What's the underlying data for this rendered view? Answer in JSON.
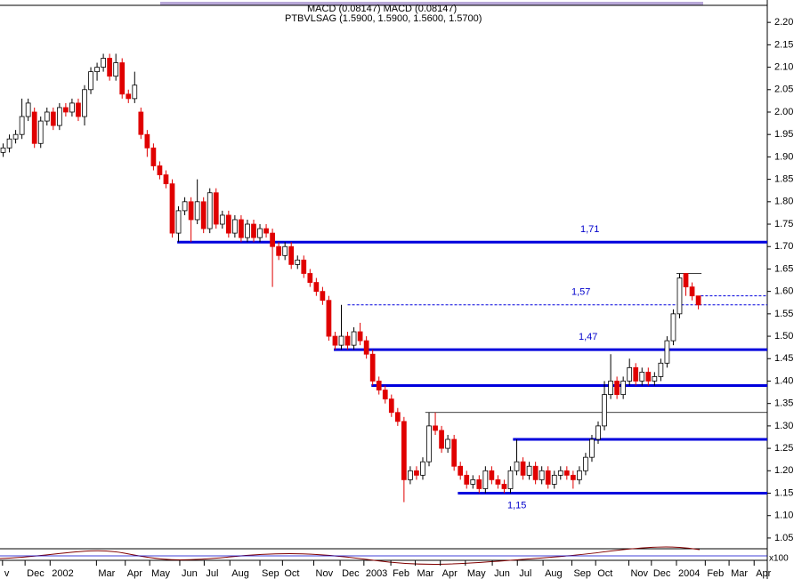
{
  "chart_data": {
    "type": "candlestick",
    "header": "MACD (0.08147) MACD (0.08147)",
    "subtitle": "PTBVLSAG (1.5900, 1.5900, 1.5600, 1.5700)",
    "indicator_label": "x100",
    "up_color": "#ffffff",
    "down_color": "#e00000",
    "level_color": "#0000dd",
    "xlim": [
      -0.5,
      122
    ],
    "ylim": [
      1.03,
      2.24
    ],
    "yticks": [
      1.05,
      {
        "value": 1.1,
        "label": "1.10"
      },
      1.15,
      {
        "value": 1.2,
        "label": "1.20"
      },
      1.25,
      {
        "value": 1.3,
        "label": "1.30"
      },
      1.35,
      {
        "value": 1.4,
        "label": "1.40"
      },
      1.45,
      {
        "value": 1.5,
        "label": "1.50"
      },
      1.55,
      {
        "value": 1.6,
        "label": "1.60"
      },
      1.65,
      {
        "value": 1.7,
        "label": "1.70"
      },
      1.75,
      {
        "value": 1.8,
        "label": "1.80"
      },
      1.85,
      {
        "value": 1.9,
        "label": "1.90"
      },
      1.95,
      {
        "value": 2.0,
        "label": "2.00"
      },
      2.05,
      {
        "value": 2.1,
        "label": "2.10"
      },
      2.15,
      {
        "value": 2.2,
        "label": "2.20"
      }
    ],
    "xticks": [
      {
        "value": -0.1,
        "label": "v"
      },
      {
        "value": 3.5,
        "label": "Dec"
      },
      {
        "value": 7.5,
        "label": "2002"
      },
      {
        "value": 14.9,
        "label": "Mar"
      },
      {
        "value": 19.5,
        "label": "Apr"
      },
      {
        "value": 23.4,
        "label": "May"
      },
      {
        "value": 28.2,
        "label": "Jun"
      },
      {
        "value": 32.1,
        "label": "Jul"
      },
      {
        "value": 36.2,
        "label": "Aug"
      },
      {
        "value": 41,
        "label": "Sep"
      },
      {
        "value": 44.6,
        "label": "Oct"
      },
      {
        "value": 49.6,
        "label": "Nov"
      },
      {
        "value": 53.8,
        "label": "Dec"
      },
      {
        "value": 57.6,
        "label": "2003"
      },
      {
        "value": 61.9,
        "label": "Feb"
      },
      {
        "value": 65.8,
        "label": "Mar"
      },
      {
        "value": 69.8,
        "label": "Apr"
      },
      {
        "value": 73.8,
        "label": "May"
      },
      {
        "value": 78.1,
        "label": "Jun"
      },
      {
        "value": 82.1,
        "label": "Jul"
      },
      {
        "value": 86.2,
        "label": "Aug"
      },
      {
        "value": 90.8,
        "label": "Sep"
      },
      {
        "value": 94.6,
        "label": "Oct"
      },
      {
        "value": 99.9,
        "label": "Nov"
      },
      {
        "value": 103.5,
        "label": "Dec"
      },
      {
        "value": 107.5,
        "label": "2004"
      },
      {
        "value": 112.1,
        "label": "Feb"
      },
      {
        "value": 115.9,
        "label": "Mar"
      },
      {
        "value": 119.9,
        "label": "Apr"
      }
    ],
    "ohlc": [
      [
        1.91,
        1.93,
        1.9,
        1.92
      ],
      [
        1.92,
        1.95,
        1.91,
        1.94
      ],
      [
        1.94,
        1.96,
        1.93,
        1.95
      ],
      [
        1.95,
        2.03,
        1.94,
        1.99
      ],
      [
        1.99,
        2.03,
        1.98,
        2.02
      ],
      [
        2.0,
        2.01,
        1.92,
        1.93
      ],
      [
        1.93,
        1.99,
        1.92,
        1.98
      ],
      [
        1.98,
        2.01,
        1.97,
        2.0
      ],
      [
        2.0,
        2.01,
        1.96,
        1.97
      ],
      [
        1.97,
        2.02,
        1.96,
        2.01
      ],
      [
        2.01,
        2.02,
        1.99,
        2.0
      ],
      [
        2.0,
        2.03,
        1.99,
        2.02
      ],
      [
        2.02,
        2.03,
        1.98,
        1.99
      ],
      [
        1.99,
        2.06,
        1.97,
        2.05
      ],
      [
        2.05,
        2.1,
        2.04,
        2.09
      ],
      [
        2.09,
        2.11,
        2.07,
        2.1
      ],
      [
        2.1,
        2.13,
        2.09,
        2.12
      ],
      [
        2.12,
        2.13,
        2.07,
        2.08
      ],
      [
        2.08,
        2.13,
        2.07,
        2.11
      ],
      [
        2.11,
        2.12,
        2.03,
        2.04
      ],
      [
        2.04,
        2.05,
        2.02,
        2.03
      ],
      [
        2.03,
        2.09,
        2.02,
        2.06
      ],
      [
        2.0,
        2.01,
        1.94,
        1.95
      ],
      [
        1.95,
        1.96,
        1.9,
        1.92
      ],
      [
        1.92,
        1.93,
        1.87,
        1.88
      ],
      [
        1.88,
        1.89,
        1.85,
        1.86
      ],
      [
        1.86,
        1.87,
        1.83,
        1.84
      ],
      [
        1.84,
        1.85,
        1.72,
        1.73
      ],
      [
        1.73,
        1.79,
        1.71,
        1.78
      ],
      [
        1.78,
        1.81,
        1.77,
        1.8
      ],
      [
        1.8,
        1.81,
        1.71,
        1.76
      ],
      [
        1.76,
        1.85,
        1.75,
        1.8
      ],
      [
        1.8,
        1.81,
        1.73,
        1.74
      ],
      [
        1.74,
        1.83,
        1.73,
        1.82
      ],
      [
        1.82,
        1.83,
        1.74,
        1.75
      ],
      [
        1.75,
        1.78,
        1.74,
        1.77
      ],
      [
        1.77,
        1.78,
        1.72,
        1.73
      ],
      [
        1.73,
        1.77,
        1.72,
        1.76
      ],
      [
        1.76,
        1.77,
        1.71,
        1.72
      ],
      [
        1.72,
        1.76,
        1.71,
        1.75
      ],
      [
        1.75,
        1.76,
        1.71,
        1.72
      ],
      [
        1.72,
        1.75,
        1.71,
        1.74
      ],
      [
        1.74,
        1.75,
        1.72,
        1.73
      ],
      [
        1.73,
        1.74,
        1.61,
        1.7
      ],
      [
        1.7,
        1.71,
        1.67,
        1.68
      ],
      [
        1.68,
        1.71,
        1.67,
        1.7
      ],
      [
        1.7,
        1.71,
        1.65,
        1.66
      ],
      [
        1.66,
        1.68,
        1.65,
        1.67
      ],
      [
        1.67,
        1.68,
        1.63,
        1.64
      ],
      [
        1.64,
        1.65,
        1.61,
        1.62
      ],
      [
        1.62,
        1.63,
        1.59,
        1.6
      ],
      [
        1.6,
        1.61,
        1.57,
        1.58
      ],
      [
        1.58,
        1.59,
        1.49,
        1.5
      ],
      [
        1.5,
        1.51,
        1.47,
        1.48
      ],
      [
        1.48,
        1.57,
        1.47,
        1.5
      ],
      [
        1.5,
        1.51,
        1.47,
        1.48
      ],
      [
        1.48,
        1.52,
        1.47,
        1.51
      ],
      [
        1.51,
        1.53,
        1.48,
        1.49
      ],
      [
        1.49,
        1.5,
        1.45,
        1.46
      ],
      [
        1.46,
        1.47,
        1.39,
        1.4
      ],
      [
        1.4,
        1.41,
        1.37,
        1.38
      ],
      [
        1.38,
        1.39,
        1.35,
        1.36
      ],
      [
        1.36,
        1.37,
        1.32,
        1.33
      ],
      [
        1.33,
        1.34,
        1.3,
        1.31
      ],
      [
        1.31,
        1.32,
        1.13,
        1.18
      ],
      [
        1.18,
        1.21,
        1.17,
        1.2
      ],
      [
        1.2,
        1.21,
        1.18,
        1.19
      ],
      [
        1.19,
        1.23,
        1.18,
        1.22
      ],
      [
        1.22,
        1.33,
        1.21,
        1.3
      ],
      [
        1.3,
        1.33,
        1.28,
        1.29
      ],
      [
        1.29,
        1.3,
        1.24,
        1.25
      ],
      [
        1.25,
        1.28,
        1.24,
        1.27
      ],
      [
        1.27,
        1.28,
        1.2,
        1.21
      ],
      [
        1.21,
        1.22,
        1.18,
        1.19
      ],
      [
        1.19,
        1.2,
        1.16,
        1.17
      ],
      [
        1.17,
        1.19,
        1.16,
        1.18
      ],
      [
        1.18,
        1.19,
        1.15,
        1.16
      ],
      [
        1.16,
        1.21,
        1.15,
        1.2
      ],
      [
        1.2,
        1.21,
        1.17,
        1.18
      ],
      [
        1.18,
        1.19,
        1.16,
        1.17
      ],
      [
        1.17,
        1.18,
        1.15,
        1.16
      ],
      [
        1.16,
        1.21,
        1.15,
        1.2
      ],
      [
        1.2,
        1.27,
        1.19,
        1.22
      ],
      [
        1.22,
        1.23,
        1.18,
        1.19
      ],
      [
        1.19,
        1.22,
        1.18,
        1.21
      ],
      [
        1.21,
        1.22,
        1.17,
        1.18
      ],
      [
        1.18,
        1.21,
        1.17,
        1.2
      ],
      [
        1.2,
        1.21,
        1.16,
        1.17
      ],
      [
        1.17,
        1.2,
        1.16,
        1.19
      ],
      [
        1.19,
        1.21,
        1.18,
        1.2
      ],
      [
        1.2,
        1.21,
        1.18,
        1.19
      ],
      [
        1.19,
        1.2,
        1.16,
        1.18
      ],
      [
        1.18,
        1.21,
        1.17,
        1.2
      ],
      [
        1.2,
        1.24,
        1.19,
        1.23
      ],
      [
        1.23,
        1.28,
        1.22,
        1.27
      ],
      [
        1.27,
        1.31,
        1.26,
        1.3
      ],
      [
        1.3,
        1.4,
        1.29,
        1.37
      ],
      [
        1.37,
        1.46,
        1.36,
        1.4
      ],
      [
        1.4,
        1.41,
        1.36,
        1.37
      ],
      [
        1.37,
        1.41,
        1.36,
        1.4
      ],
      [
        1.4,
        1.45,
        1.39,
        1.43
      ],
      [
        1.43,
        1.44,
        1.39,
        1.4
      ],
      [
        1.4,
        1.43,
        1.39,
        1.42
      ],
      [
        1.42,
        1.43,
        1.39,
        1.4
      ],
      [
        1.4,
        1.42,
        1.39,
        1.41
      ],
      [
        1.41,
        1.45,
        1.4,
        1.44
      ],
      [
        1.44,
        1.5,
        1.43,
        1.49
      ],
      [
        1.49,
        1.56,
        1.48,
        1.55
      ],
      [
        1.55,
        1.64,
        1.54,
        1.63
      ],
      [
        1.64,
        1.64,
        1.59,
        1.61
      ],
      [
        1.61,
        1.62,
        1.58,
        1.59
      ],
      [
        1.59,
        1.59,
        1.56,
        1.57
      ]
    ],
    "levels": [
      {
        "value": 1.71,
        "label": "1,71",
        "from": 27.8,
        "style": "solid"
      },
      {
        "value": 1.57,
        "label": "1,57",
        "from": 55,
        "style": "dashed"
      },
      {
        "value": 1.47,
        "label": "1,47",
        "from": 52.8,
        "style": "solid"
      },
      {
        "value": 1.39,
        "from": 58.8,
        "style": "solid"
      },
      {
        "value": 1.27,
        "from": 81.4,
        "style": "solid"
      },
      {
        "value": 1.15,
        "label": "1,15",
        "from": 72.6,
        "style": "solid"
      },
      {
        "value": 1.59,
        "from": 111.4,
        "style": "dashed"
      },
      {
        "value": 1.33,
        "from": 67.4,
        "style": "thin"
      },
      {
        "value": 1.64,
        "from": 107.5,
        "to": 111.5,
        "style": "thin"
      }
    ]
  }
}
